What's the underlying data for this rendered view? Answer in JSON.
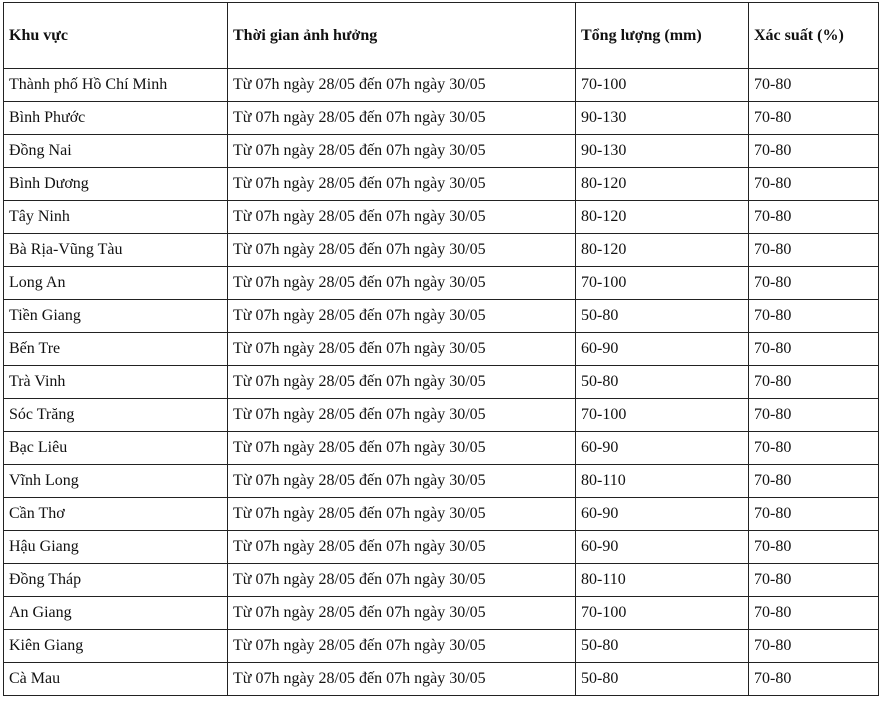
{
  "headers": [
    "Khu vực",
    "Thời gian ảnh hưởng",
    "Tổng lượng (mm)",
    "Xác suất (%)"
  ],
  "rows": [
    [
      "Thành phố Hồ Chí Minh",
      "Từ 07h ngày 28/05 đến 07h ngày 30/05",
      "70-100",
      "70-80"
    ],
    [
      "Bình Phước",
      "Từ 07h ngày 28/05 đến 07h ngày 30/05",
      "90-130",
      "70-80"
    ],
    [
      "Đồng Nai",
      "Từ 07h ngày 28/05 đến 07h ngày 30/05",
      "90-130",
      "70-80"
    ],
    [
      "Bình Dương",
      "Từ 07h ngày 28/05 đến 07h ngày 30/05",
      "80-120",
      "70-80"
    ],
    [
      "Tây Ninh",
      "Từ 07h ngày 28/05 đến 07h ngày 30/05",
      "80-120",
      "70-80"
    ],
    [
      "Bà Rịa-Vũng Tàu",
      "Từ 07h ngày 28/05 đến 07h ngày 30/05",
      "80-120",
      "70-80"
    ],
    [
      "Long An",
      "Từ 07h ngày 28/05 đến 07h ngày 30/05",
      "70-100",
      "70-80"
    ],
    [
      "Tiền Giang",
      "Từ 07h ngày 28/05 đến 07h ngày 30/05",
      "50-80",
      "70-80"
    ],
    [
      "Bến Tre",
      "Từ 07h ngày 28/05 đến 07h ngày 30/05",
      "60-90",
      "70-80"
    ],
    [
      "Trà Vinh",
      "Từ 07h ngày 28/05 đến 07h ngày 30/05",
      "50-80",
      "70-80"
    ],
    [
      "Sóc Trăng",
      "Từ 07h ngày 28/05 đến 07h ngày 30/05",
      "70-100",
      "70-80"
    ],
    [
      "Bạc Liêu",
      "Từ 07h ngày 28/05 đến 07h ngày 30/05",
      "60-90",
      "70-80"
    ],
    [
      "Vĩnh Long",
      "Từ 07h ngày 28/05 đến 07h ngày 30/05",
      "80-110",
      "70-80"
    ],
    [
      "Cần Thơ",
      "Từ 07h ngày 28/05 đến 07h ngày 30/05",
      "60-90",
      "70-80"
    ],
    [
      "Hậu Giang",
      "Từ 07h ngày 28/05 đến 07h ngày 30/05",
      "60-90",
      "70-80"
    ],
    [
      "Đồng Tháp",
      "Từ 07h ngày 28/05 đến 07h ngày 30/05",
      "80-110",
      "70-80"
    ],
    [
      "An Giang",
      "Từ 07h ngày 28/05 đến 07h ngày 30/05",
      "70-100",
      "70-80"
    ],
    [
      "Kiên Giang",
      "Từ 07h ngày 28/05 đến 07h ngày 30/05",
      "50-80",
      "70-80"
    ],
    [
      "Cà Mau",
      "Từ 07h ngày 28/05 đến 07h ngày 30/05",
      "50-80",
      "70-80"
    ]
  ]
}
